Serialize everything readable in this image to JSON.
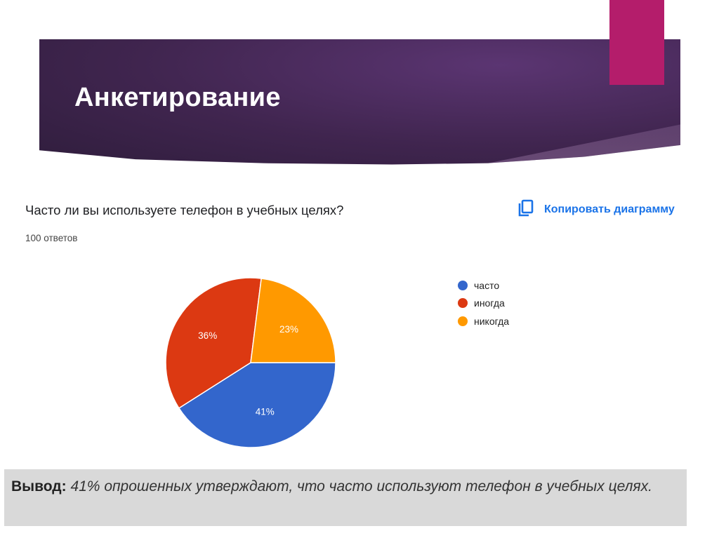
{
  "header": {
    "title": "Анкетирование"
  },
  "question": "Часто ли вы используете телефон в учебных целях?",
  "responses_count": "100 ответов",
  "copy_button": {
    "label": "Копировать диаграмму",
    "icon": "copy-icon"
  },
  "colors": {
    "accent": "#b41d6b",
    "link": "#1a73e8"
  },
  "chart_data": {
    "type": "pie",
    "categories": [
      "часто",
      "иногда",
      "никогда"
    ],
    "values": [
      41,
      36,
      23
    ],
    "labels": [
      "41%",
      "36%",
      "23%"
    ],
    "colors": [
      "#3366cc",
      "#dc3912",
      "#ff9900"
    ],
    "legend": "right"
  },
  "conclusion": {
    "label": "Вывод:",
    "text": "41% опрошенных утверждают, что часто используют телефон в учебных целях."
  }
}
